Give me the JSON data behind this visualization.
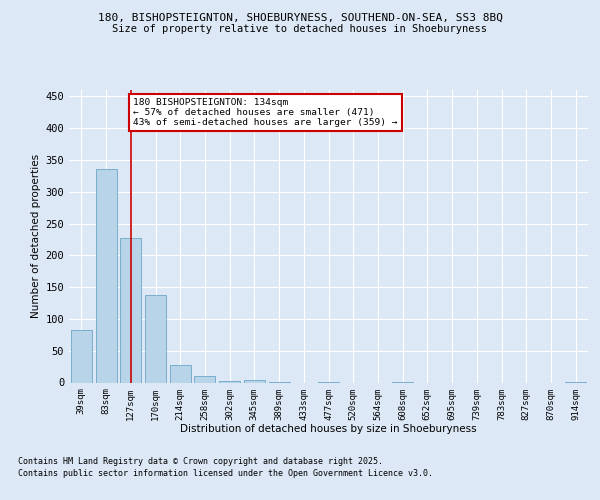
{
  "title_line1": "180, BISHOPSTEIGNTON, SHOEBURYNESS, SOUTHEND-ON-SEA, SS3 8BQ",
  "title_line2": "Size of property relative to detached houses in Shoeburyness",
  "xlabel": "Distribution of detached houses by size in Shoeburyness",
  "ylabel": "Number of detached properties",
  "bar_color": "#b8d4e8",
  "bar_edge_color": "#5a9abf",
  "categories": [
    "39sqm",
    "83sqm",
    "127sqm",
    "170sqm",
    "214sqm",
    "258sqm",
    "302sqm",
    "345sqm",
    "389sqm",
    "433sqm",
    "477sqm",
    "520sqm",
    "564sqm",
    "608sqm",
    "652sqm",
    "695sqm",
    "739sqm",
    "783sqm",
    "827sqm",
    "870sqm",
    "914sqm"
  ],
  "values": [
    83,
    336,
    228,
    138,
    28,
    10,
    3,
    4,
    1,
    0,
    1,
    0,
    0,
    1,
    0,
    0,
    0,
    0,
    0,
    0,
    1
  ],
  "ylim": [
    0,
    460
  ],
  "yticks": [
    0,
    50,
    100,
    150,
    200,
    250,
    300,
    350,
    400,
    450
  ],
  "vline_x": 2,
  "vline_color": "#cc0000",
  "annotation_text": "180 BISHOPSTEIGNTON: 134sqm\n← 57% of detached houses are smaller (471)\n43% of semi-detached houses are larger (359) →",
  "annotation_box_color": "#ffffff",
  "annotation_box_edge": "#cc0000",
  "bg_color": "#dce8f5",
  "plot_bg_color": "#dce8f5",
  "footer_line1": "Contains HM Land Registry data © Crown copyright and database right 2025.",
  "footer_line2": "Contains public sector information licensed under the Open Government Licence v3.0."
}
